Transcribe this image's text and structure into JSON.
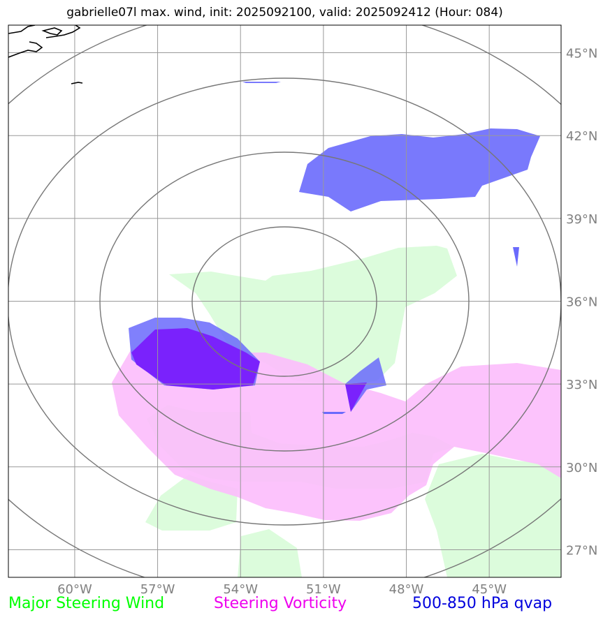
{
  "header": {
    "title": "gabrielle07l max. wind, init: 2025092100, valid: 2025092412 (Hour: 084)"
  },
  "map": {
    "lon_range": [
      -62.4,
      -42.4
    ],
    "lat_range": [
      26.0,
      46.0
    ],
    "lon_ticks": [
      {
        "value": -60,
        "label": "60°W"
      },
      {
        "value": -57,
        "label": "57°W"
      },
      {
        "value": -54,
        "label": "54°W"
      },
      {
        "value": -51,
        "label": "51°W"
      },
      {
        "value": -48,
        "label": "48°W"
      },
      {
        "value": -45,
        "label": "45°W"
      }
    ],
    "lat_ticks": [
      {
        "value": 27,
        "label": "27°N"
      },
      {
        "value": 30,
        "label": "30°N"
      },
      {
        "value": 33,
        "label": "33°N"
      },
      {
        "value": 36,
        "label": "36°N"
      },
      {
        "value": 39,
        "label": "39°N"
      },
      {
        "value": 42,
        "label": "42°N"
      },
      {
        "value": 45,
        "label": "45°N"
      }
    ],
    "grid": true,
    "range_rings_center": [
      -52.0,
      36.0
    ],
    "colors": {
      "steering_wind": "#dcfcdc",
      "steering_vorticity": "#fcbcfc",
      "qvap": "#6a6afc",
      "qvap_strong": "#7a22fc",
      "grid": "#999999",
      "rings": "#777777",
      "ticks": "#808080"
    }
  },
  "legend": {
    "items": [
      {
        "label": "Major Steering Wind",
        "color": "#00ff00"
      },
      {
        "label": "Steering Vorticity",
        "color": "#ee00ee"
      },
      {
        "label": "500-850 hPa qvap",
        "color": "#0000dd"
      }
    ]
  }
}
